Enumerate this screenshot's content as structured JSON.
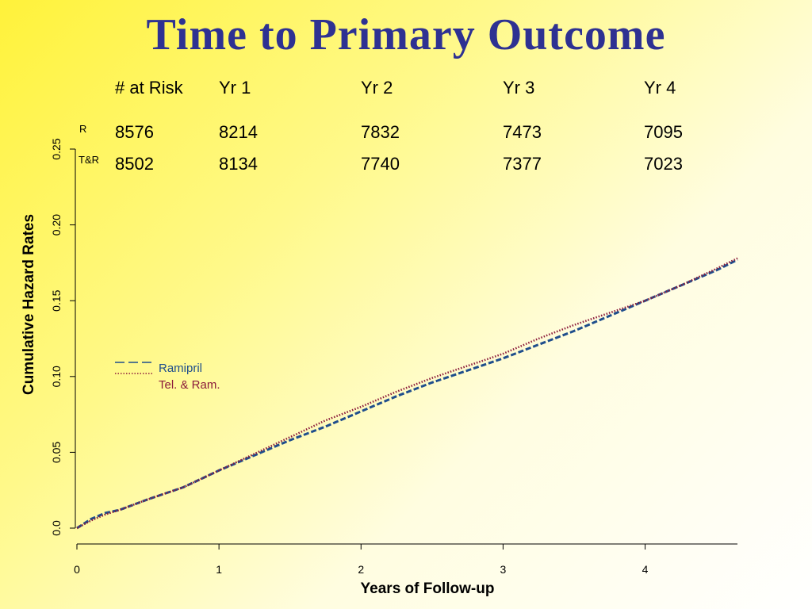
{
  "slide": {
    "title": "Time to Primary Outcome"
  },
  "risk_table": {
    "header": [
      "# at Risk",
      "Yr 1",
      "Yr 2",
      "Yr 3",
      "Yr 4"
    ],
    "rows": [
      {
        "label": "R",
        "values": [
          "8576",
          "8214",
          "7832",
          "7473",
          "7095"
        ]
      },
      {
        "label": "T&R",
        "values": [
          "8502",
          "8134",
          "7740",
          "7377",
          "7023"
        ]
      }
    ]
  },
  "chart_data": {
    "type": "line",
    "xlabel": "Years of Follow-up",
    "ylabel": "Cumulative Hazard Rates",
    "xlim": [
      0,
      4.65
    ],
    "ylim": [
      0,
      0.25
    ],
    "xticks": [
      0,
      1,
      2,
      3,
      4
    ],
    "xtick_labels": [
      "0",
      "1",
      "2",
      "3",
      "4"
    ],
    "yticks": [
      0,
      0.05,
      0.1,
      0.15,
      0.2,
      0.25
    ],
    "ytick_labels": [
      "0.0",
      "0.05",
      "0.10",
      "0.15",
      "0.20",
      "0.25"
    ],
    "grid": false,
    "legend": {
      "placement": "left-middle"
    },
    "series": [
      {
        "name": "Ramipril",
        "color": "#1f4e8c",
        "style": "dashed",
        "x": [
          0,
          0.1,
          0.2,
          0.3,
          0.5,
          0.75,
          1.0,
          1.25,
          1.5,
          1.75,
          2.0,
          2.25,
          2.5,
          2.75,
          3.0,
          3.25,
          3.5,
          3.75,
          4.0,
          4.25,
          4.5,
          4.65
        ],
        "y": [
          0,
          0.006,
          0.01,
          0.012,
          0.019,
          0.027,
          0.038,
          0.048,
          0.058,
          0.067,
          0.077,
          0.087,
          0.096,
          0.104,
          0.112,
          0.121,
          0.13,
          0.14,
          0.15,
          0.16,
          0.17,
          0.177
        ]
      },
      {
        "name": "Tel. & Ram.",
        "color": "#8b1a3a",
        "style": "dotted",
        "x": [
          0,
          0.1,
          0.2,
          0.3,
          0.5,
          0.75,
          1.0,
          1.25,
          1.5,
          1.75,
          2.0,
          2.25,
          2.5,
          2.75,
          3.0,
          3.25,
          3.5,
          3.75,
          4.0,
          4.25,
          4.5,
          4.65
        ],
        "y": [
          0,
          0.005,
          0.009,
          0.012,
          0.019,
          0.027,
          0.038,
          0.049,
          0.06,
          0.071,
          0.08,
          0.09,
          0.099,
          0.107,
          0.115,
          0.125,
          0.134,
          0.142,
          0.15,
          0.16,
          0.171,
          0.178
        ]
      }
    ]
  }
}
